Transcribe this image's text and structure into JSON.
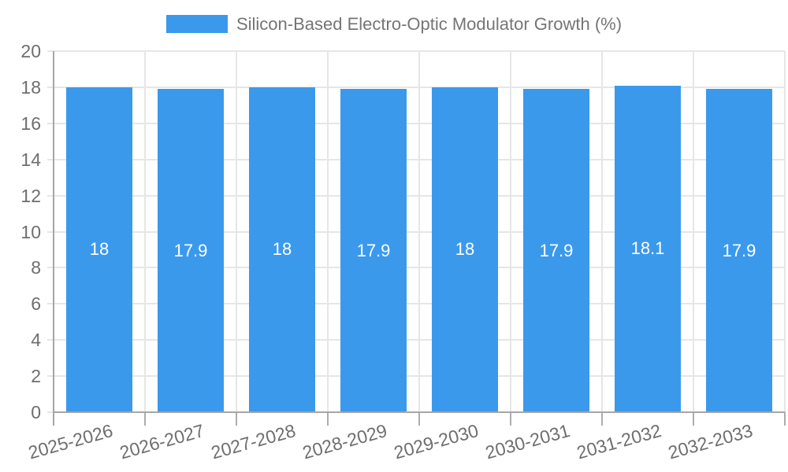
{
  "chart_data": {
    "type": "bar",
    "title": "Silicon-Based Electro-Optic Modulator Growth (%)",
    "categories": [
      "2025-2026",
      "2026-2027",
      "2027-2028",
      "2028-2029",
      "2029-2030",
      "2030-2031",
      "2031-2032",
      "2032-2033"
    ],
    "values": [
      18,
      17.9,
      18,
      17.9,
      18,
      17.9,
      18.1,
      17.9
    ],
    "value_labels": [
      "18",
      "17.9",
      "18",
      "17.9",
      "18",
      "17.9",
      "18.1",
      "17.9"
    ],
    "xlabel": "",
    "ylabel": "",
    "ylim": [
      0,
      20
    ],
    "ytick_step": 2,
    "ytick_labels": [
      "0",
      "2",
      "4",
      "6",
      "8",
      "10",
      "12",
      "14",
      "16",
      "18",
      "20"
    ],
    "grid": true,
    "legend": {
      "position": "top",
      "label": "Silicon-Based Electro-Optic Modulator Growth (%)"
    },
    "colors": {
      "bar": "#3B99EC",
      "grid": "#E6E6E6",
      "axis": "#A6A6A6",
      "category_tick": "#ADADAD",
      "tick_text": "#6E6E6E",
      "legend_text": "#757575",
      "value_label_text": "#FFFFFF",
      "background": "#FFFFFF"
    }
  }
}
